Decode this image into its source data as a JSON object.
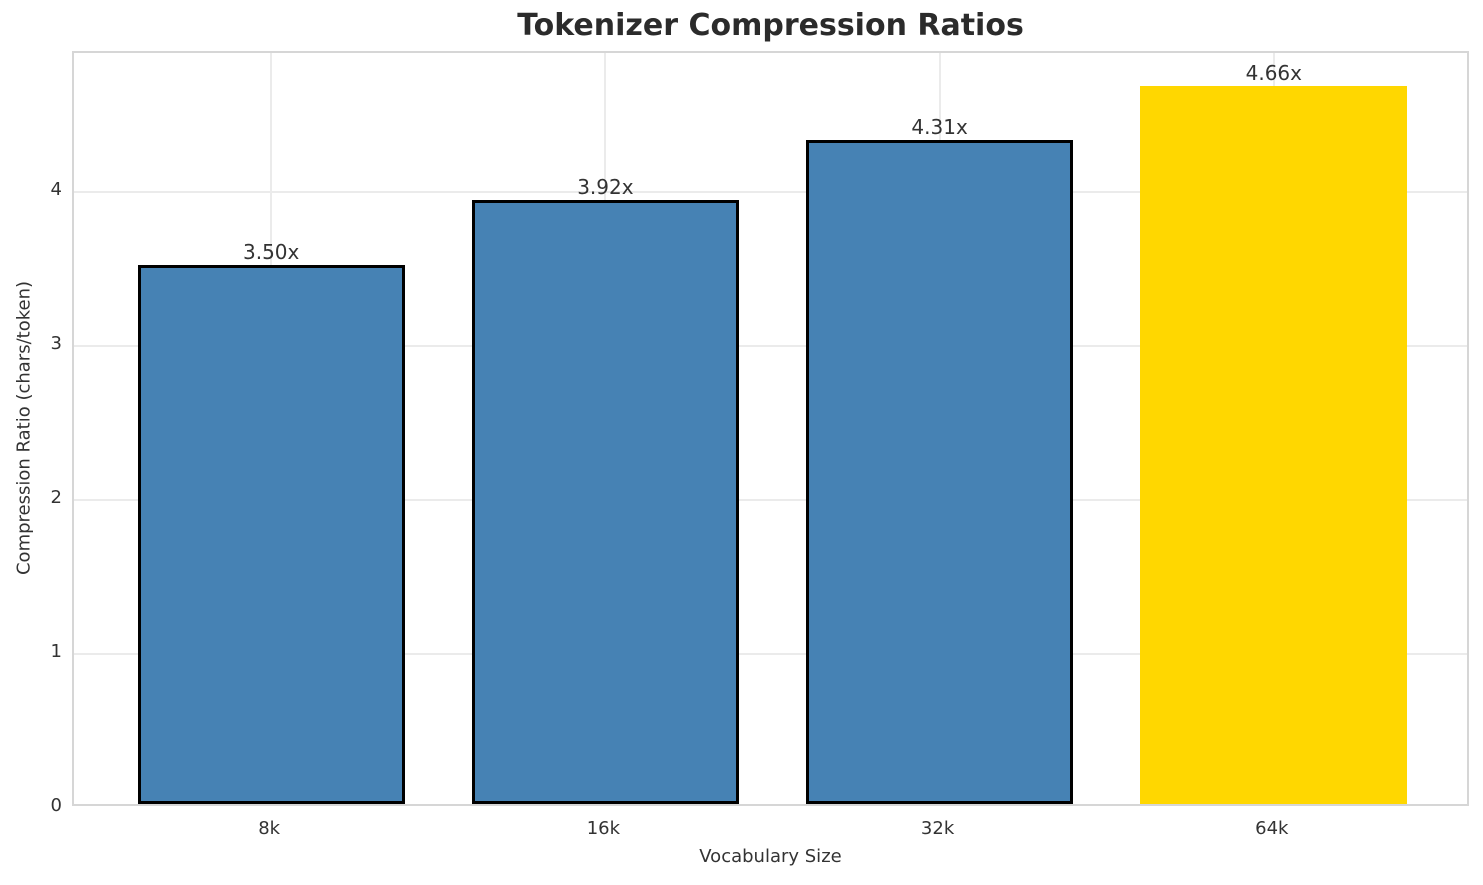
{
  "chart_data": {
    "type": "bar",
    "title": "Tokenizer Compression Ratios",
    "xlabel": "Vocabulary Size",
    "ylabel": "Compression Ratio (chars/token)",
    "categories": [
      "8k",
      "16k",
      "32k",
      "64k"
    ],
    "values": [
      3.5,
      3.92,
      4.31,
      4.66
    ],
    "bar_labels": [
      "3.50x",
      "3.92x",
      "4.31x",
      "4.66x"
    ],
    "bar_colors": [
      "#4682B4",
      "#4682B4",
      "#4682B4",
      "#FFD700"
    ],
    "bar_edge_colors": [
      "#000000",
      "#000000",
      "#000000",
      null
    ],
    "ylim": [
      0,
      4.9
    ],
    "yticks": [
      0,
      1,
      2,
      3,
      4
    ],
    "bar_width_fraction": 0.8,
    "grid": true,
    "legend_position": "none",
    "accent_color": "#FFD700",
    "base_color": "#4682B4"
  }
}
